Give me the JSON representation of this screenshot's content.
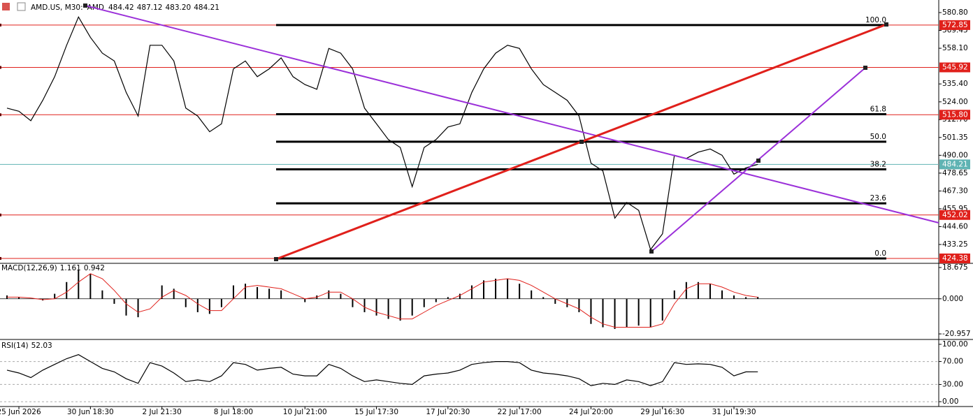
{
  "chart_data": [
    {
      "type": "line",
      "title": "AMD.US, M30:",
      "ticker": "AMD",
      "header_ohlc": [
        484.42,
        487.12,
        {
          "value": 483.2,
          "label": "483.20"
        }
      ],
      "x": [
        null,
        "25 Jun 2026",
        null,
        null,
        null,
        null,
        null,
        "30 Jun 18:30",
        null,
        null,
        null,
        null,
        null,
        "2 Jul 21:30",
        null,
        null,
        null,
        null,
        null,
        "8 Jul 18:00",
        null,
        null,
        null,
        null,
        null,
        "10 Jul 21:00",
        null,
        null,
        null,
        null,
        null,
        "15 Jul 17:30",
        null,
        null,
        null,
        null,
        null,
        "17 Jul 20:30",
        null,
        null,
        null,
        null,
        null,
        "22 Jul 17:00",
        null,
        null,
        null,
        null,
        null,
        "24 Jul 20:00",
        null,
        null,
        null,
        null,
        null,
        "29 Jul 16:30",
        null,
        null,
        null,
        null,
        null,
        "31 Jul 19:30",
        null,
        null
      ],
      "values": [
        520,
        518,
        512,
        525,
        540,
        560,
        578,
        565,
        555,
        550,
        530,
        515,
        560,
        560,
        550,
        520,
        515,
        505,
        510,
        545,
        550,
        540,
        545,
        552,
        540,
        535,
        532,
        558,
        555,
        545,
        520,
        510,
        500,
        495,
        470,
        495,
        500,
        508,
        510,
        530,
        545,
        555,
        560,
        558,
        545,
        535,
        530,
        525,
        515,
        485,
        480,
        450,
        460,
        455,
        430,
        440,
        490,
        488,
        492,
        494,
        490,
        478,
        482,
        484.21
      ],
      "color": "#000000",
      "ylim": [
        421.7,
        588.8
      ],
      "yticks": [
        {
          "value": 580.8,
          "label": "580.80"
        },
        569.45,
        {
          "value": 558.1,
          "label": "558.10"
        },
        {
          "value": 535.4,
          "label": "535.40"
        },
        {
          "value": 524,
          "label": "524.00"
        },
        {
          "value": 512.7,
          "label": "512.70"
        },
        501.35,
        {
          "value": 490,
          "label": "490.00"
        },
        478.65,
        {
          "value": 467.3,
          "label": "467.30"
        },
        455.95,
        {
          "value": 444.6,
          "label": "444.60"
        },
        433.25
      ],
      "price_levels": [
        572.85,
        545.92,
        {
          "value": 515.8,
          "label": "515.80"
        },
        452.02,
        424.38
      ],
      "level_color": "#e0201b",
      "current_price": 484.21,
      "current_color": "#5fb3b3",
      "fib_levels": [
        {
          "value": 100,
          "label": "100.0"
        },
        61.8,
        {
          "value": 50,
          "label": "50.0"
        },
        38.2,
        23.6,
        {
          "value": 0,
          "label": "0.0"
        }
      ]
    },
    {
      "type": "bar",
      "title": "MACD(12,26,9)",
      "values": [
        2,
        1,
        0,
        -1,
        3,
        10,
        17,
        15,
        5,
        -3,
        -10,
        -11,
        0,
        8,
        6,
        -5,
        -8,
        -9,
        -5,
        8,
        9,
        7,
        6,
        5,
        0,
        -2,
        2,
        5,
        3,
        -5,
        -8,
        -10,
        -12,
        -13,
        -10,
        -5,
        -2,
        1,
        3,
        8,
        11,
        12,
        12,
        9,
        5,
        1,
        -3,
        -5,
        -8,
        -15,
        -17,
        -18,
        -17,
        -16,
        -17,
        -13,
        5,
        10,
        10,
        9,
        5,
        2,
        1,
        1.161
      ],
      "signal": [
        1,
        1,
        0.5,
        -0.5,
        0,
        4,
        10,
        15,
        12,
        5,
        -3,
        -8,
        -6,
        1,
        5,
        2,
        -3,
        -7,
        -7,
        0,
        7,
        8,
        7,
        6,
        3,
        0,
        1,
        4,
        4,
        0,
        -5,
        -8,
        -10,
        -12,
        -12,
        -8,
        -4,
        -1,
        2,
        6,
        10,
        11,
        12,
        11,
        8,
        4,
        0,
        -3,
        -6,
        -11,
        -15,
        -17,
        -17,
        -17,
        -17,
        -15,
        -3,
        6,
        9,
        9,
        7,
        4,
        2,
        0.942
      ],
      "color": "#000000",
      "signal_color": "#e0201b",
      "ylim": [
        -23.86,
        20.75
      ],
      "yticks": [
        18.675,
        {
          "value": 0,
          "label": "0.000"
        },
        -20.957
      ]
    },
    {
      "type": "line",
      "title": "RSI(14)",
      "values": [
        55,
        50,
        42,
        55,
        65,
        75,
        82,
        70,
        58,
        52,
        40,
        32,
        68,
        62,
        50,
        35,
        38,
        35,
        45,
        68,
        65,
        55,
        58,
        60,
        48,
        45,
        45,
        65,
        58,
        45,
        35,
        38,
        35,
        32,
        30,
        45,
        48,
        50,
        55,
        65,
        68,
        70,
        70,
        68,
        55,
        50,
        48,
        45,
        40,
        28,
        32,
        30,
        38,
        35,
        28,
        35,
        68,
        65,
        66,
        65,
        60,
        45,
        52,
        52.03
      ],
      "color": "#000000",
      "ylim": [
        -6,
        106
      ],
      "yticks": [
        {
          "value": 100,
          "label": "100.00"
        },
        {
          "value": 70,
          "label": "70.00"
        },
        {
          "value": 30,
          "label": "30.00"
        },
        {
          "value": 0,
          "label": "0.00"
        }
      ]
    }
  ]
}
